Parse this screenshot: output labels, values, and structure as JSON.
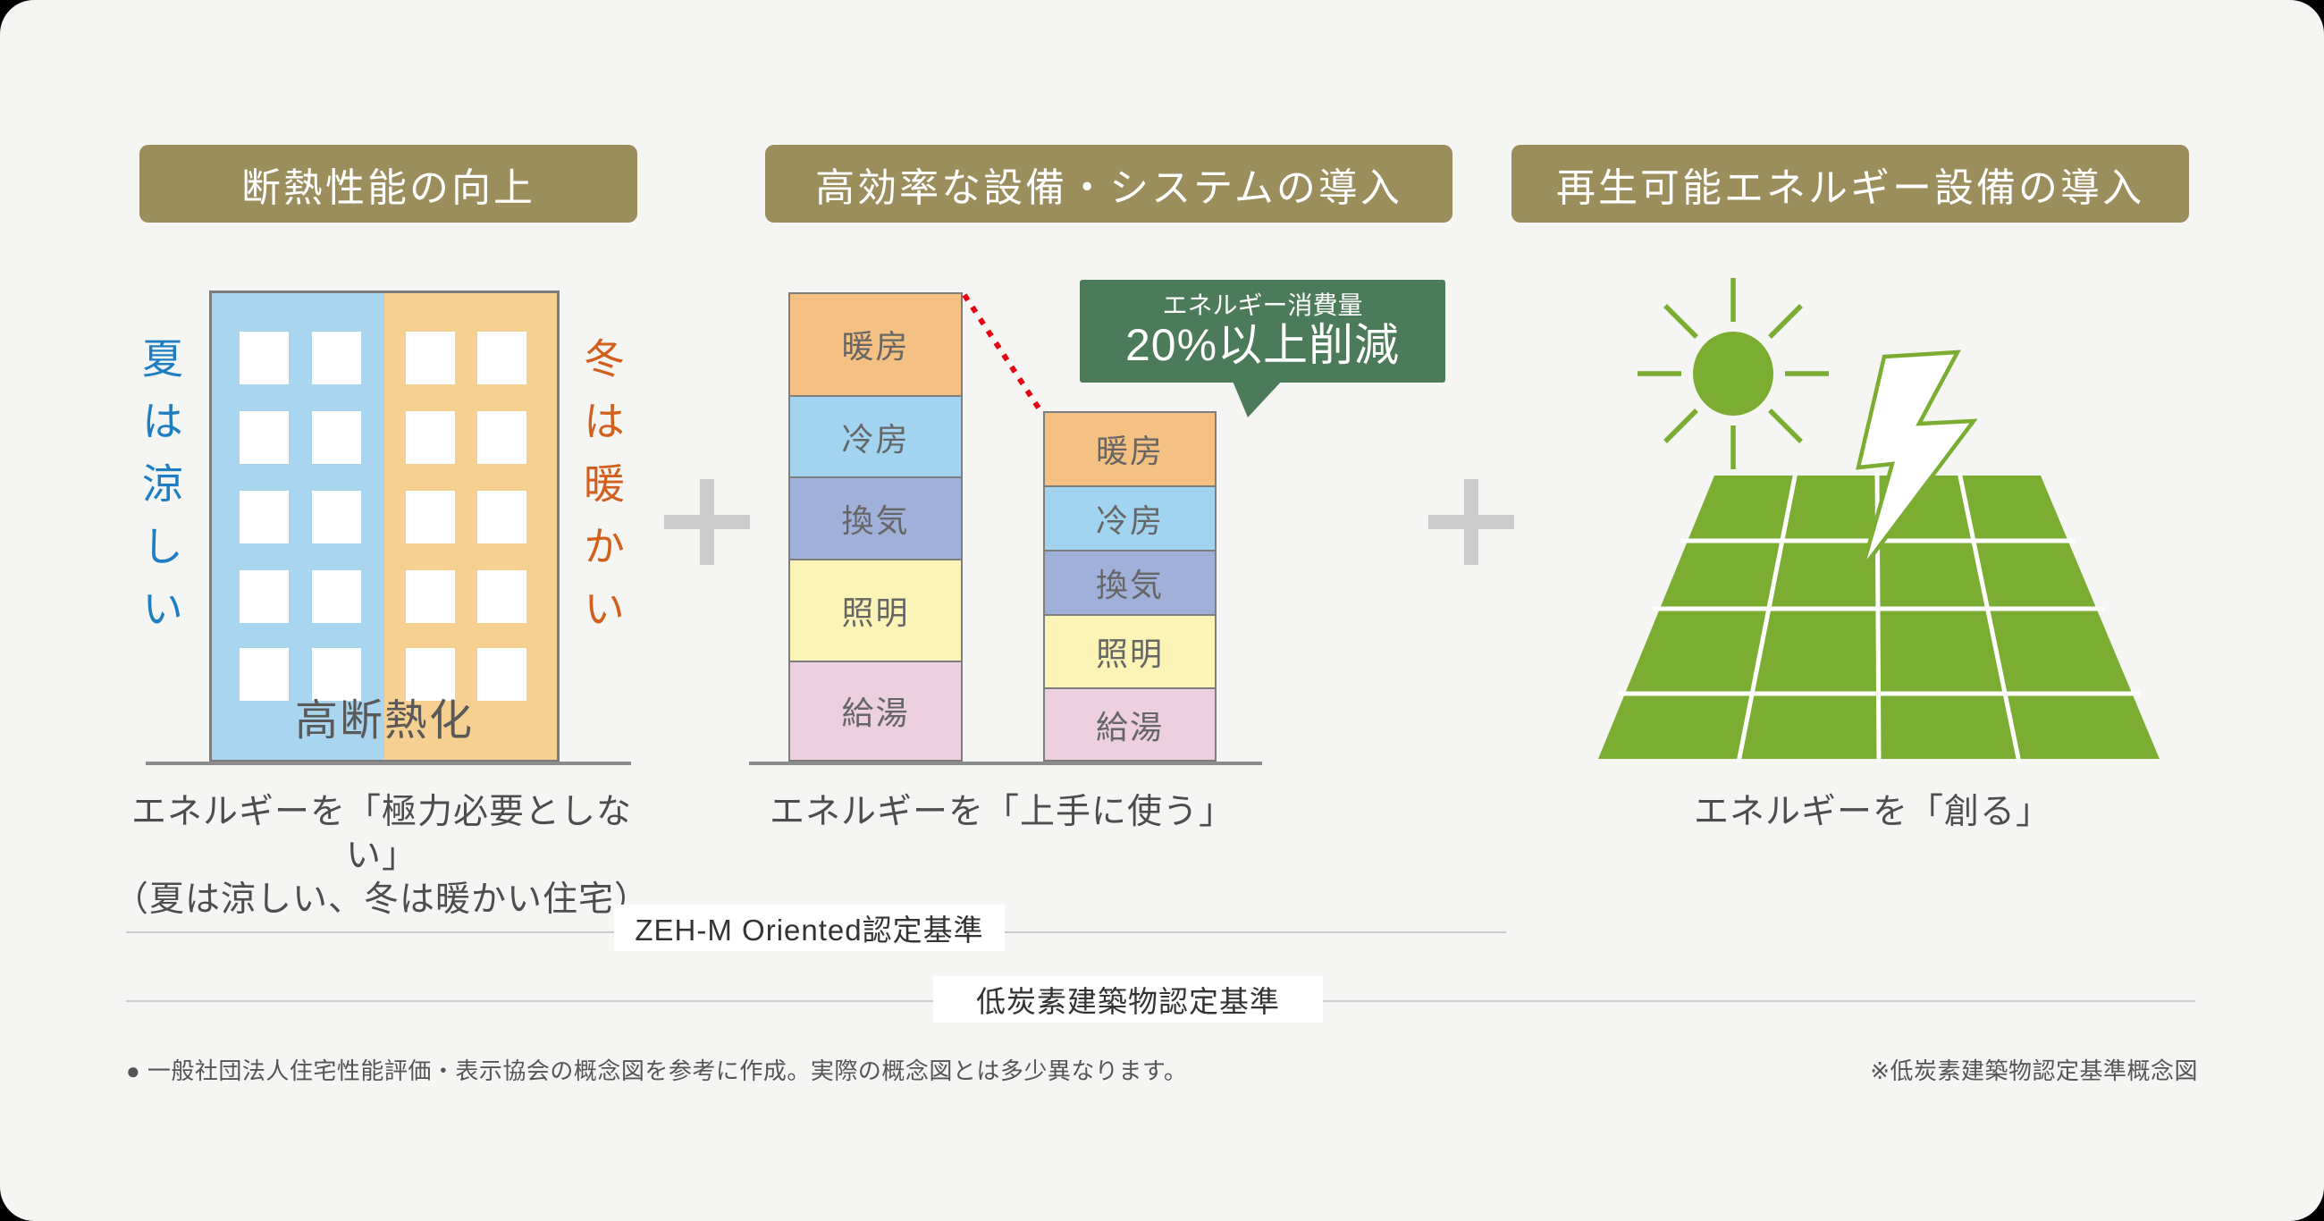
{
  "colors": {
    "background": "#f5f5f3",
    "badge": "#9c8d5c",
    "plus": "#cccccc",
    "summer_text": "#1d7fc1",
    "winter_text": "#d2601c",
    "building_left": "#a9d5ee",
    "building_right": "#f6d091",
    "callout_green": "#4b7b58",
    "solar_green": "#7cad33",
    "connector_red": "#e60012"
  },
  "panels": [
    {
      "header": "断熱性能の向上",
      "captions": [
        "エネルギーを「極力必要としない」",
        "（夏は涼しい、冬は暖かい住宅）"
      ],
      "building": {
        "left_label": "夏は涼しい",
        "right_label": "冬は暖かい",
        "bottom_label": "高断熱化",
        "window_rows": 5,
        "window_cols": 4
      }
    },
    {
      "header": "高効率な設備・システムの導入",
      "captions": [
        "エネルギーを「上手に使う」"
      ]
    },
    {
      "header": "再生可能エネルギー設備の導入",
      "captions": [
        "エネルギーを「創る」"
      ],
      "icons": [
        "sun-icon",
        "lightning-icon",
        "solar-panel"
      ]
    }
  ],
  "chart_data": {
    "type": "bar",
    "stacked": true,
    "orientation": "vertical",
    "unit": "relative-height-px",
    "bars": [
      {
        "id": "before",
        "total": 528,
        "segments": [
          {
            "label": "暖房",
            "value": 127,
            "color": "#f4c183"
          },
          {
            "label": "冷房",
            "value": 78,
            "color": "#a2d4ef"
          },
          {
            "label": "換気",
            "value": 79,
            "color": "#a0b1d9"
          },
          {
            "label": "照明",
            "value": 125,
            "color": "#fcf4b6"
          },
          {
            "label": "給湯",
            "value": 119,
            "color": "#edcfe0"
          }
        ]
      },
      {
        "id": "after",
        "total": 395,
        "segments": [
          {
            "label": "暖房",
            "value": 95,
            "color": "#f4c183"
          },
          {
            "label": "冷房",
            "value": 59,
            "color": "#a2d4ef"
          },
          {
            "label": "換気",
            "value": 61,
            "color": "#a0b1d9"
          },
          {
            "label": "照明",
            "value": 92,
            "color": "#fcf4b6"
          },
          {
            "label": "給湯",
            "value": 88,
            "color": "#edcfe0"
          }
        ]
      }
    ],
    "annotation": {
      "line1": "エネルギー消費量",
      "line2": "20%以上削減"
    }
  },
  "certifications": [
    {
      "label": "ZEH-M Oriented認定基準"
    },
    {
      "label": "低炭素建築物認定基準"
    }
  ],
  "notes": {
    "left": "● 一般社団法人住宅性能評価・表示協会の概念図を参考に作成。実際の概念図とは多少異なります。",
    "right": "※低炭素建築物認定基準概念図"
  }
}
